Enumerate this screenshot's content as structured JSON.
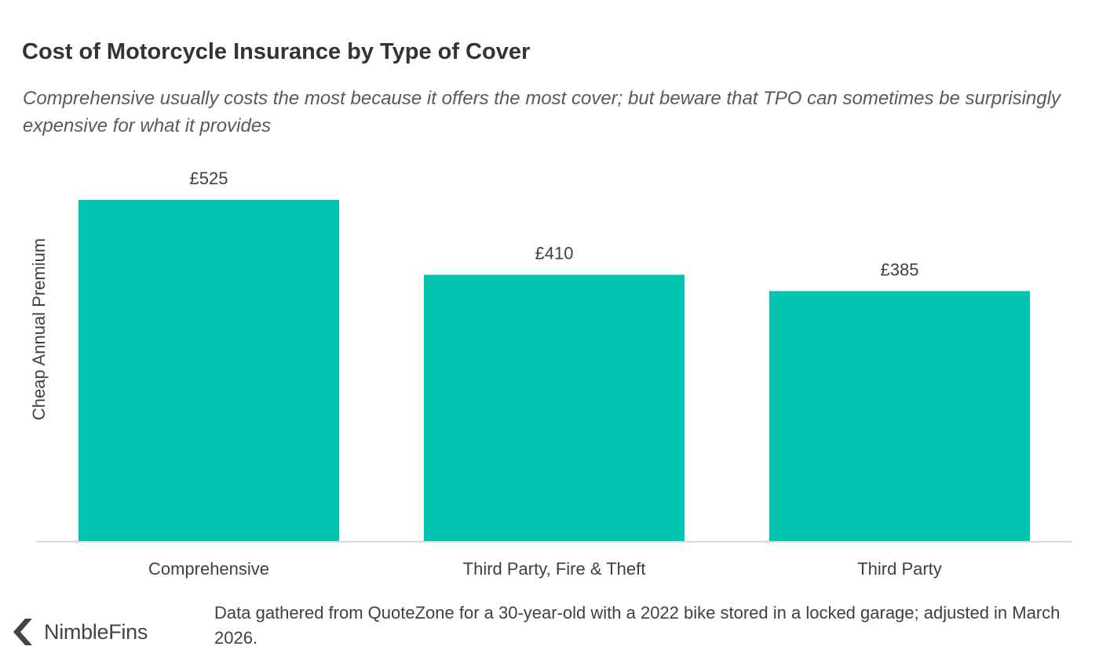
{
  "title": "Cost of Motorcycle Insurance by Type of Cover",
  "subtitle": "Comprehensive usually costs the most because it offers the most cover; but beware that TPO can sometimes be surprisingly expensive for what it provides",
  "source_note": "Data gathered from QuoteZone for a 30-year-old with a 2022 bike stored in a locked garage; adjusted in March 2026.",
  "logo": {
    "text": "NimbleFins",
    "icon": "chevron-left-icon"
  },
  "colors": {
    "bar": "#00c4b0",
    "axis": "#d9d9d9",
    "text": "#404040"
  },
  "chart_data": {
    "type": "bar",
    "title": "Cost of Motorcycle Insurance by Type of Cover",
    "xlabel": "",
    "ylabel": "Cheap Annual Premium",
    "categories": [
      "Comprehensive",
      "Third Party, Fire & Theft",
      "Third Party"
    ],
    "values": [
      525,
      410,
      385
    ],
    "data_labels": [
      "£525",
      "£410",
      "£385"
    ],
    "ylim": [
      0,
      525
    ],
    "grid": false,
    "legend": "none"
  }
}
